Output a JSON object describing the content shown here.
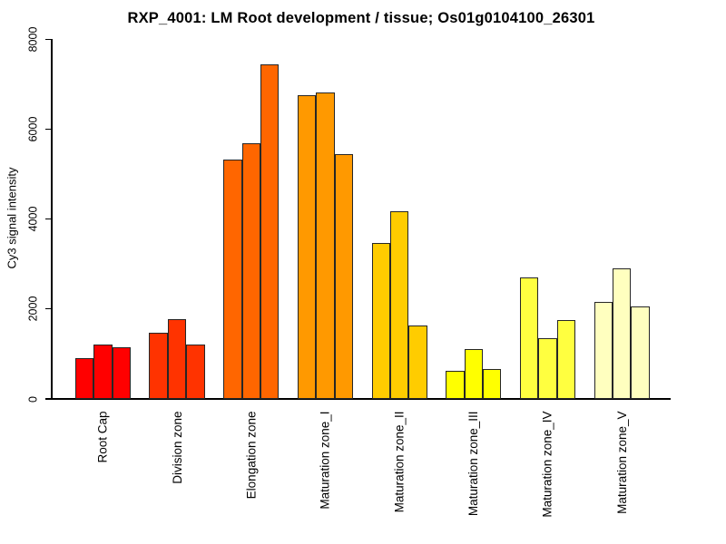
{
  "chart_data": {
    "type": "bar",
    "title": "RXP_4001: LM Root development / tissue; Os01g0104100_26301",
    "xlabel": "",
    "ylabel": "Cy3 signal intensity",
    "ylim": [
      0,
      8000
    ],
    "yticks": [
      0,
      2000,
      4000,
      6000,
      8000
    ],
    "grid": false,
    "legend_position": "none",
    "bars_per_group": 3,
    "background_color": "#ffffff",
    "axis_color": "#000000",
    "bar_border_color": "#262626",
    "categories": [
      "Root Cap",
      "Division zone",
      "Elongation zone",
      "Maturation zone_I",
      "Maturation zone_II",
      "Maturation zone_III",
      "Maturation zone_IV",
      "Maturation zone_V"
    ],
    "groups": [
      {
        "label": "Root Cap",
        "color": "#FF0000",
        "values": [
          900,
          1220,
          1140
        ]
      },
      {
        "label": "Division zone",
        "color": "#FF3300",
        "values": [
          1480,
          1770,
          1200
        ]
      },
      {
        "label": "Elongation zone",
        "color": "#FF6600",
        "values": [
          5330,
          5680,
          7450
        ]
      },
      {
        "label": "Maturation zone_I",
        "color": "#FF9900",
        "values": [
          6750,
          6820,
          5440
        ]
      },
      {
        "label": "Maturation zone_II",
        "color": "#FFCC00",
        "values": [
          3470,
          4180,
          1630
        ]
      },
      {
        "label": "Maturation zone_III",
        "color": "#FFFF00",
        "values": [
          630,
          1100,
          670
        ]
      },
      {
        "label": "Maturation zone_IV",
        "color": "#FFFF40",
        "values": [
          2700,
          1350,
          1760
        ]
      },
      {
        "label": "Maturation zone_V",
        "color": "#FFFFBF",
        "values": [
          2150,
          2910,
          2050
        ]
      }
    ]
  }
}
